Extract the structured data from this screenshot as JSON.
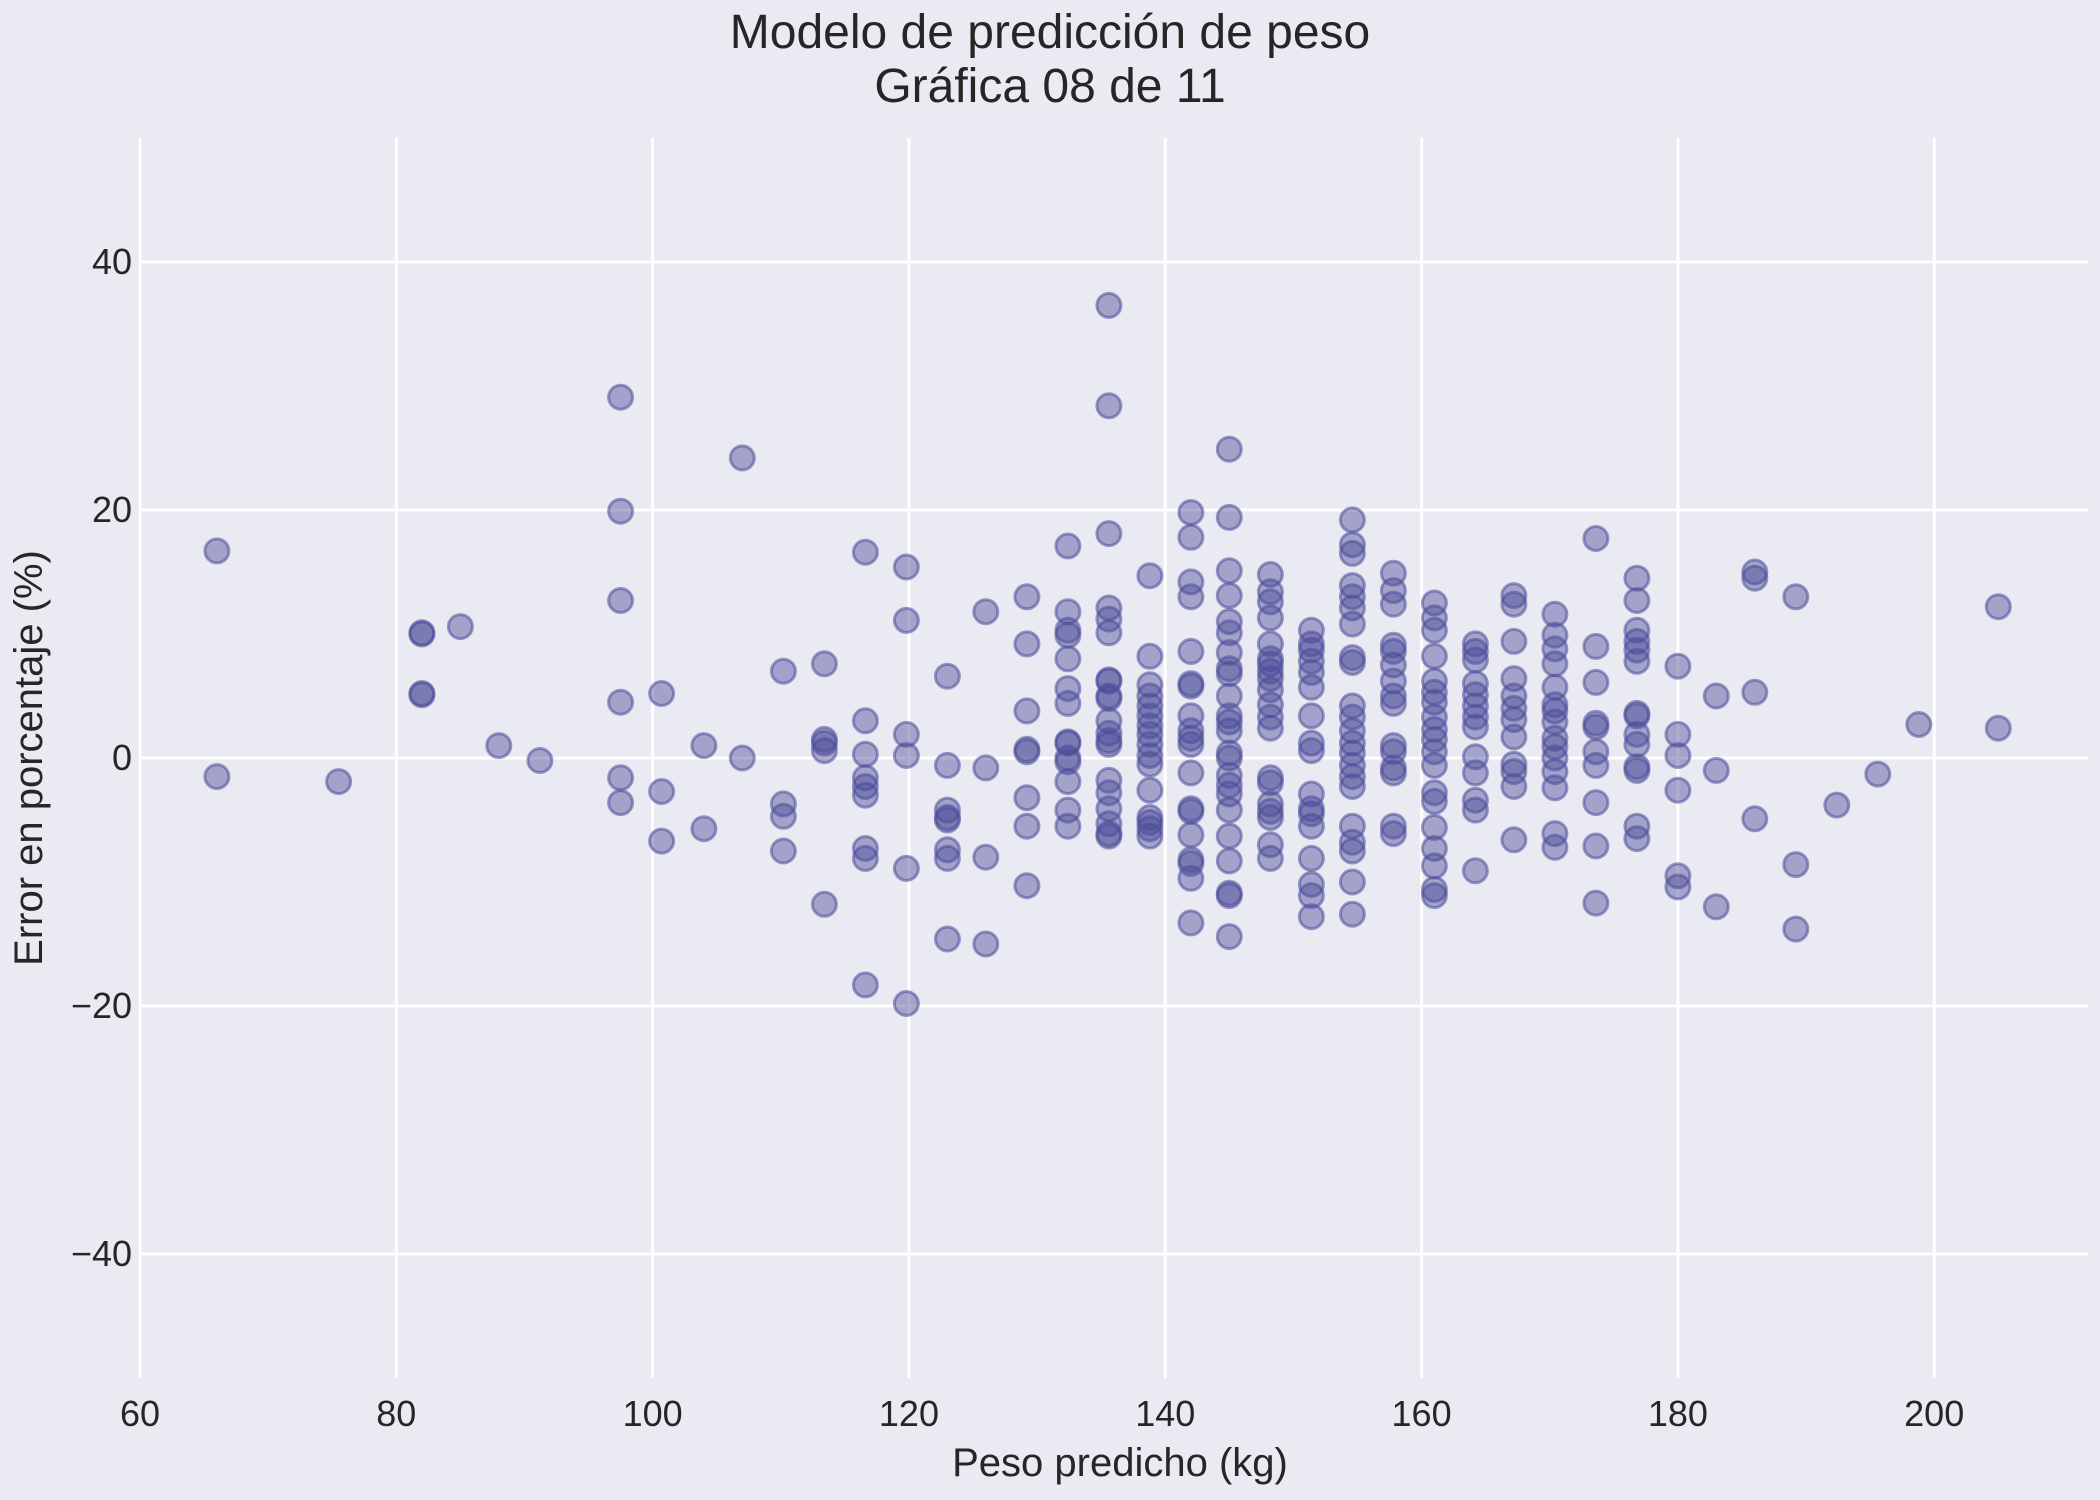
{
  "chart_data": {
    "type": "scatter",
    "title": "Modelo de predicción de peso",
    "subtitle": "Gráfica 08 de 11",
    "xlabel": "Peso predicho (kg)",
    "ylabel": "Error en porcentaje (%)",
    "xlim": [
      60,
      212
    ],
    "ylim": [
      -50,
      50
    ],
    "xticks": [
      60,
      80,
      100,
      120,
      140,
      160,
      180,
      200
    ],
    "yticks": [
      -40,
      -20,
      0,
      20,
      40
    ],
    "xtick_labels": [
      "60",
      "80",
      "100",
      "120",
      "140",
      "160",
      "180",
      "200"
    ],
    "ytick_labels": [
      "−40",
      "−20",
      "0",
      "20",
      "40"
    ],
    "grid": true,
    "marker_color": "#4c4c9a",
    "marker_opacity": 0.45,
    "points": [
      [
        66,
        16.7
      ],
      [
        66,
        -1.5
      ],
      [
        75.5,
        -1.9
      ],
      [
        82,
        10
      ],
      [
        82,
        10.1
      ],
      [
        82,
        5.2
      ],
      [
        82,
        5.1
      ],
      [
        85,
        10.6
      ],
      [
        88,
        1
      ],
      [
        91.2,
        -0.2
      ],
      [
        97.5,
        29.1
      ],
      [
        97.5,
        19.9
      ],
      [
        97.5,
        12.7
      ],
      [
        97.5,
        4.5
      ],
      [
        97.5,
        -1.6
      ],
      [
        97.5,
        -3.6
      ],
      [
        100.7,
        5.2
      ],
      [
        100.7,
        -2.7
      ],
      [
        100.7,
        -6.7
      ],
      [
        104,
        1
      ],
      [
        104,
        -5.7
      ],
      [
        107,
        24.2
      ],
      [
        107,
        0
      ],
      [
        110.2,
        7
      ],
      [
        110.2,
        -3.7
      ],
      [
        110.2,
        -4.7
      ],
      [
        110.2,
        -7.5
      ],
      [
        113.4,
        7.6
      ],
      [
        113.4,
        1.5
      ],
      [
        113.4,
        1.2
      ],
      [
        113.4,
        0.6
      ],
      [
        113.4,
        -11.8
      ],
      [
        116.6,
        16.6
      ],
      [
        116.6,
        3
      ],
      [
        116.6,
        0.3
      ],
      [
        116.6,
        -1.6
      ],
      [
        116.6,
        -2.3
      ],
      [
        116.6,
        -3
      ],
      [
        116.6,
        -7.3
      ],
      [
        116.6,
        -8.1
      ],
      [
        116.6,
        -18.3
      ],
      [
        119.8,
        15.4
      ],
      [
        119.8,
        11.1
      ],
      [
        119.8,
        1.9
      ],
      [
        119.8,
        0.2
      ],
      [
        119.8,
        -8.9
      ],
      [
        119.8,
        -19.8
      ],
      [
        123,
        6.6
      ],
      [
        123,
        -0.6
      ],
      [
        123,
        -4.2
      ],
      [
        123,
        -4.8
      ],
      [
        123,
        -5
      ],
      [
        123,
        -7.4
      ],
      [
        123,
        -8.1
      ],
      [
        123,
        -14.6
      ],
      [
        126,
        11.8
      ],
      [
        126,
        -0.8
      ],
      [
        126,
        -8
      ],
      [
        126,
        -15
      ],
      [
        129.2,
        13
      ],
      [
        129.2,
        9.2
      ],
      [
        129.2,
        3.8
      ],
      [
        129.2,
        0.7
      ],
      [
        129.2,
        0.5
      ],
      [
        129.2,
        -3.2
      ],
      [
        129.2,
        -5.5
      ],
      [
        129.2,
        -10.3
      ],
      [
        132.4,
        17.1
      ],
      [
        132.4,
        11.8
      ],
      [
        132.4,
        10.3
      ],
      [
        132.4,
        9.9
      ],
      [
        132.4,
        8
      ],
      [
        132.4,
        5.6
      ],
      [
        132.4,
        4.4
      ],
      [
        132.4,
        1.3
      ],
      [
        132.4,
        1.2
      ],
      [
        132.4,
        0
      ],
      [
        132.4,
        -0.3
      ],
      [
        132.4,
        -1.9
      ],
      [
        132.4,
        -4.2
      ],
      [
        132.4,
        -5.5
      ],
      [
        135.6,
        36.5
      ],
      [
        135.6,
        28.4
      ],
      [
        135.6,
        18.1
      ],
      [
        135.6,
        12.1
      ],
      [
        135.6,
        11.2
      ],
      [
        135.6,
        10.1
      ],
      [
        135.6,
        6.3
      ],
      [
        135.6,
        6.2
      ],
      [
        135.6,
        5
      ],
      [
        135.6,
        4.8
      ],
      [
        135.6,
        3
      ],
      [
        135.6,
        2
      ],
      [
        135.6,
        1.4
      ],
      [
        135.6,
        1.1
      ],
      [
        135.6,
        -1.8
      ],
      [
        135.6,
        -2.8
      ],
      [
        135.6,
        -4.1
      ],
      [
        135.6,
        -5.3
      ],
      [
        135.6,
        -6.1
      ],
      [
        135.6,
        -6.3
      ],
      [
        138.8,
        14.7
      ],
      [
        138.8,
        8.2
      ],
      [
        138.8,
        5.9
      ],
      [
        138.8,
        5
      ],
      [
        138.8,
        4.2
      ],
      [
        138.8,
        3.4
      ],
      [
        138.8,
        2.6
      ],
      [
        138.8,
        1.9
      ],
      [
        138.8,
        1.1
      ],
      [
        138.8,
        0.2
      ],
      [
        138.8,
        -0.5
      ],
      [
        138.8,
        -2.6
      ],
      [
        138.8,
        -4.8
      ],
      [
        138.8,
        -5.2
      ],
      [
        138.8,
        -5.7
      ],
      [
        138.8,
        -6.3
      ],
      [
        142,
        19.8
      ],
      [
        142,
        17.8
      ],
      [
        142,
        14.2
      ],
      [
        142,
        13
      ],
      [
        142,
        8.6
      ],
      [
        142,
        6
      ],
      [
        142,
        5.8
      ],
      [
        142,
        3.4
      ],
      [
        142,
        2.2
      ],
      [
        142,
        1.6
      ],
      [
        142,
        1.1
      ],
      [
        142,
        -1.2
      ],
      [
        142,
        -4.1
      ],
      [
        142,
        -4.3
      ],
      [
        142,
        -6.2
      ],
      [
        142,
        -8.2
      ],
      [
        142,
        -8.5
      ],
      [
        142,
        -9.7
      ],
      [
        142,
        -13.3
      ],
      [
        145,
        24.9
      ],
      [
        145,
        19.4
      ],
      [
        145,
        15.1
      ],
      [
        145,
        13.1
      ],
      [
        145,
        11
      ],
      [
        145,
        10.1
      ],
      [
        145,
        8.5
      ],
      [
        145,
        7.2
      ],
      [
        145,
        6.8
      ],
      [
        145,
        5
      ],
      [
        145,
        3.4
      ],
      [
        145,
        2.9
      ],
      [
        145,
        2.2
      ],
      [
        145,
        0.4
      ],
      [
        145,
        0
      ],
      [
        145,
        -1.4
      ],
      [
        145,
        -2.2
      ],
      [
        145,
        -2.9
      ],
      [
        145,
        -4.2
      ],
      [
        145,
        -6.3
      ],
      [
        145,
        -8.3
      ],
      [
        145,
        -10.9
      ],
      [
        145,
        -11.1
      ],
      [
        145,
        -14.4
      ],
      [
        148.2,
        14.8
      ],
      [
        148.2,
        13.4
      ],
      [
        148.2,
        12.6
      ],
      [
        148.2,
        11.3
      ],
      [
        148.2,
        9.2
      ],
      [
        148.2,
        8
      ],
      [
        148.2,
        7.6
      ],
      [
        148.2,
        7
      ],
      [
        148.2,
        6.4
      ],
      [
        148.2,
        5.5
      ],
      [
        148.2,
        4.3
      ],
      [
        148.2,
        3.3
      ],
      [
        148.2,
        2.4
      ],
      [
        148.2,
        -1.6
      ],
      [
        148.2,
        -2
      ],
      [
        148.2,
        -3.7
      ],
      [
        148.2,
        -4.3
      ],
      [
        148.2,
        -4.8
      ],
      [
        148.2,
        -7
      ],
      [
        148.2,
        -8.1
      ],
      [
        151.4,
        10.3
      ],
      [
        151.4,
        9.2
      ],
      [
        151.4,
        8.7
      ],
      [
        151.4,
        7.8
      ],
      [
        151.4,
        6.9
      ],
      [
        151.4,
        5.7
      ],
      [
        151.4,
        3.4
      ],
      [
        151.4,
        1.2
      ],
      [
        151.4,
        0.6
      ],
      [
        151.4,
        -2.9
      ],
      [
        151.4,
        -4.1
      ],
      [
        151.4,
        -4.5
      ],
      [
        151.4,
        -5.5
      ],
      [
        151.4,
        -8.1
      ],
      [
        151.4,
        -10.2
      ],
      [
        151.4,
        -11.1
      ],
      [
        151.4,
        -12.8
      ],
      [
        154.6,
        19.2
      ],
      [
        154.6,
        17.2
      ],
      [
        154.6,
        16.5
      ],
      [
        154.6,
        13.9
      ],
      [
        154.6,
        13
      ],
      [
        154.6,
        12.1
      ],
      [
        154.6,
        10.8
      ],
      [
        154.6,
        8.1
      ],
      [
        154.6,
        7.7
      ],
      [
        154.6,
        4.2
      ],
      [
        154.6,
        3.3
      ],
      [
        154.6,
        2.2
      ],
      [
        154.6,
        1.2
      ],
      [
        154.6,
        0.4
      ],
      [
        154.6,
        -0.6
      ],
      [
        154.6,
        -1.5
      ],
      [
        154.6,
        -2.3
      ],
      [
        154.6,
        -5.5
      ],
      [
        154.6,
        -6.8
      ],
      [
        154.6,
        -7.5
      ],
      [
        154.6,
        -10
      ],
      [
        154.6,
        -12.6
      ],
      [
        157.8,
        14.9
      ],
      [
        157.8,
        13.5
      ],
      [
        157.8,
        12.4
      ],
      [
        157.8,
        9.1
      ],
      [
        157.8,
        8.6
      ],
      [
        157.8,
        7.5
      ],
      [
        157.8,
        6.2
      ],
      [
        157.8,
        5
      ],
      [
        157.8,
        4.4
      ],
      [
        157.8,
        1
      ],
      [
        157.8,
        0.5
      ],
      [
        157.8,
        -0.8
      ],
      [
        157.8,
        -1.2
      ],
      [
        157.8,
        -5.5
      ],
      [
        157.8,
        -6.1
      ],
      [
        161,
        12.5
      ],
      [
        161,
        11.3
      ],
      [
        161,
        10.3
      ],
      [
        161,
        8.2
      ],
      [
        161,
        6.2
      ],
      [
        161,
        5.3
      ],
      [
        161,
        4.5
      ],
      [
        161,
        3.3
      ],
      [
        161,
        2.3
      ],
      [
        161,
        1.5
      ],
      [
        161,
        0.5
      ],
      [
        161,
        -0.6
      ],
      [
        161,
        -2.8
      ],
      [
        161,
        -3.5
      ],
      [
        161,
        -5.6
      ],
      [
        161,
        -7.3
      ],
      [
        161,
        -8.7
      ],
      [
        161,
        -10.6
      ],
      [
        161,
        -11.1
      ],
      [
        164.2,
        9.2
      ],
      [
        164.2,
        8.6
      ],
      [
        164.2,
        7.9
      ],
      [
        164.2,
        6
      ],
      [
        164.2,
        5.1
      ],
      [
        164.2,
        4.2
      ],
      [
        164.2,
        3.3
      ],
      [
        164.2,
        2.5
      ],
      [
        164.2,
        0.1
      ],
      [
        164.2,
        -1.2
      ],
      [
        164.2,
        -3.4
      ],
      [
        164.2,
        -4.2
      ],
      [
        164.2,
        -9.1
      ],
      [
        167.2,
        13.1
      ],
      [
        167.2,
        12.4
      ],
      [
        167.2,
        9.4
      ],
      [
        167.2,
        6.4
      ],
      [
        167.2,
        5
      ],
      [
        167.2,
        4
      ],
      [
        167.2,
        3.1
      ],
      [
        167.2,
        1.7
      ],
      [
        167.2,
        -0.5
      ],
      [
        167.2,
        -1.1
      ],
      [
        167.2,
        -2.3
      ],
      [
        167.2,
        -6.6
      ],
      [
        170.4,
        11.6
      ],
      [
        170.4,
        9.9
      ],
      [
        170.4,
        8.8
      ],
      [
        170.4,
        7.6
      ],
      [
        170.4,
        5.7
      ],
      [
        170.4,
        4.3
      ],
      [
        170.4,
        3.8
      ],
      [
        170.4,
        2.9
      ],
      [
        170.4,
        1.6
      ],
      [
        170.4,
        0.9
      ],
      [
        170.4,
        0
      ],
      [
        170.4,
        -1.1
      ],
      [
        170.4,
        -2.4
      ],
      [
        170.4,
        -6.1
      ],
      [
        170.4,
        -7.2
      ],
      [
        173.6,
        17.7
      ],
      [
        173.6,
        9
      ],
      [
        173.6,
        6.1
      ],
      [
        173.6,
        2.8
      ],
      [
        173.6,
        2.5
      ],
      [
        173.6,
        0.5
      ],
      [
        173.6,
        -0.6
      ],
      [
        173.6,
        -3.6
      ],
      [
        173.6,
        -7.1
      ],
      [
        173.6,
        -11.7
      ],
      [
        176.8,
        14.5
      ],
      [
        176.8,
        12.7
      ],
      [
        176.8,
        10.3
      ],
      [
        176.8,
        9.4
      ],
      [
        176.8,
        8.7
      ],
      [
        176.8,
        7.8
      ],
      [
        176.8,
        3.6
      ],
      [
        176.8,
        3.4
      ],
      [
        176.8,
        1.9
      ],
      [
        176.8,
        1.1
      ],
      [
        176.8,
        -0.7
      ],
      [
        176.8,
        -1
      ],
      [
        176.8,
        -5.5
      ],
      [
        176.8,
        -6.5
      ],
      [
        180,
        7.4
      ],
      [
        180,
        1.9
      ],
      [
        180,
        0.2
      ],
      [
        180,
        -2.6
      ],
      [
        180,
        -9.5
      ],
      [
        180,
        -10.4
      ],
      [
        183,
        5
      ],
      [
        183,
        -1
      ],
      [
        183,
        -12
      ],
      [
        186,
        15
      ],
      [
        186,
        14.5
      ],
      [
        186,
        5.3
      ],
      [
        186,
        -4.9
      ],
      [
        189.2,
        13
      ],
      [
        189.2,
        -8.6
      ],
      [
        189.2,
        -13.8
      ],
      [
        192.4,
        -3.8
      ],
      [
        195.6,
        -1.3
      ],
      [
        198.8,
        2.7
      ],
      [
        205,
        12.2
      ],
      [
        205,
        2.4
      ]
    ]
  }
}
